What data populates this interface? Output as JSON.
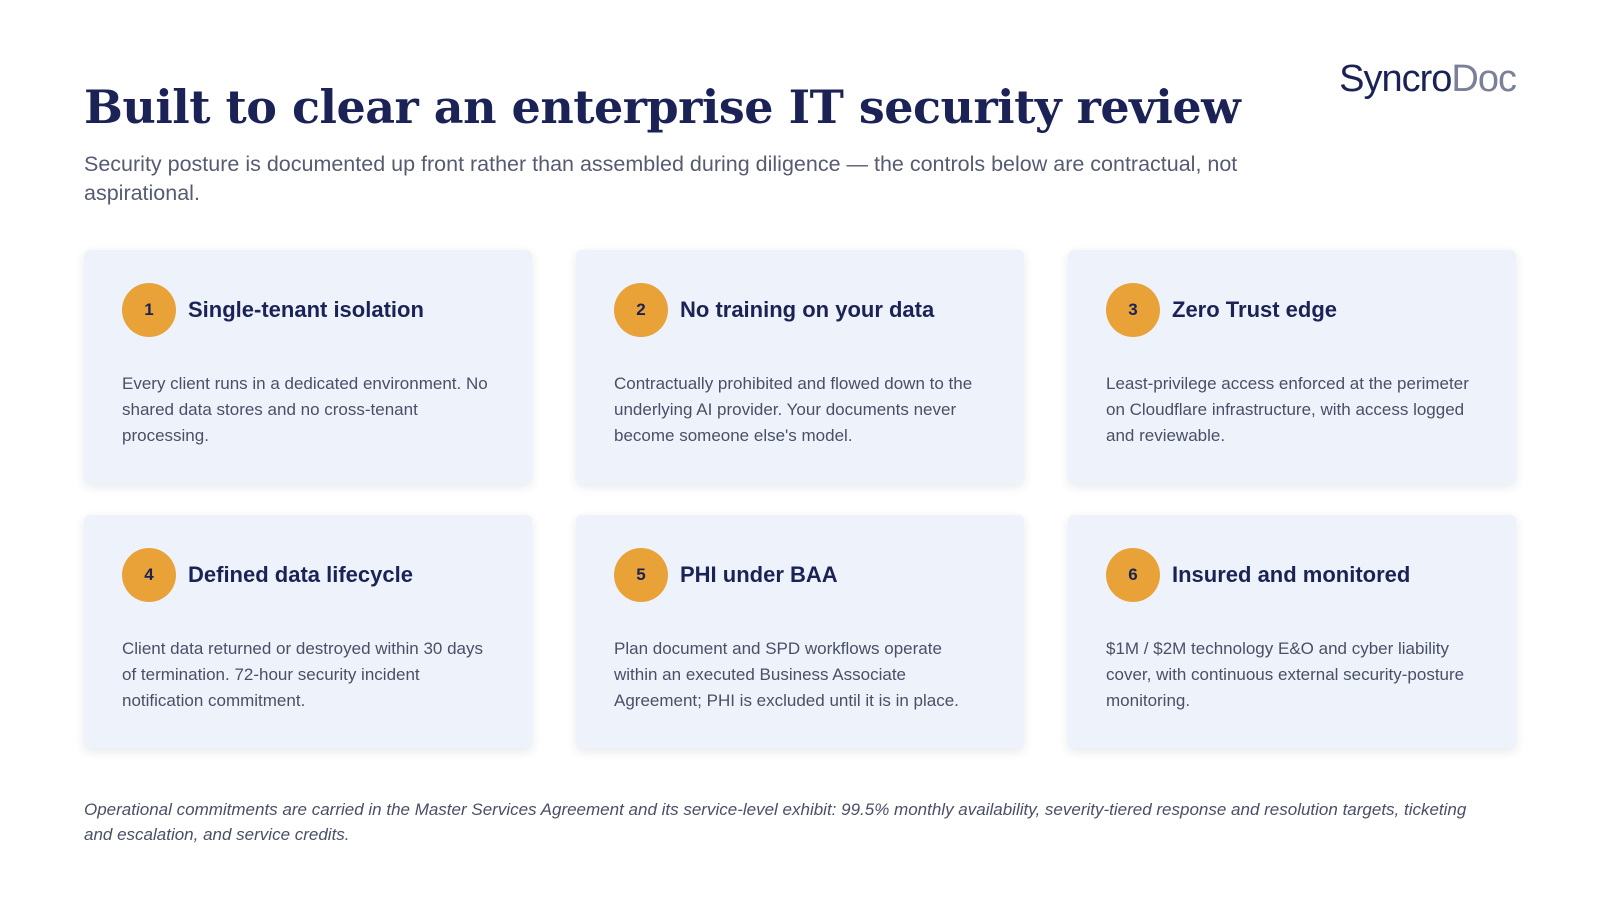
{
  "brand": {
    "part1": "Syncro",
    "part2": "Doc"
  },
  "header": {
    "title": "Built to clear an enterprise IT security review",
    "subtitle": "Security posture is documented up front rather than assembled during diligence — the controls below are contractual, not aspirational."
  },
  "cards": [
    {
      "number": "1",
      "title": "Single-tenant isolation",
      "body": "Every client runs in a dedicated environment. No shared data stores and no cross-tenant processing."
    },
    {
      "number": "2",
      "title": "No training on your data",
      "body": "Contractually prohibited and flowed down to the underlying AI provider. Your documents never become someone else's model."
    },
    {
      "number": "3",
      "title": "Zero Trust edge",
      "body": "Least-privilege access enforced at the perimeter on Cloudflare infrastructure, with access logged and reviewable."
    },
    {
      "number": "4",
      "title": "Defined data lifecycle",
      "body": "Client data returned or destroyed within 30 days of termination. 72-hour security incident notification commitment."
    },
    {
      "number": "5",
      "title": "PHI under BAA",
      "body": "Plan document and SPD workflows operate within an executed Business Associate Agreement; PHI is excluded until it is in place."
    },
    {
      "number": "6",
      "title": "Insured and monitored",
      "body": "$1M / $2M technology E&O and cyber liability cover, with continuous external security-posture monitoring."
    }
  ],
  "footnote": "Operational commitments are carried in the Master Services Agreement and its service-level exhibit: 99.5% monthly availability, severity-tiered response and resolution targets, ticketing and escalation, and service credits.",
  "colors": {
    "navy": "#1b2356",
    "accent": "#e8a237",
    "card_bg": "#eef3fb"
  }
}
